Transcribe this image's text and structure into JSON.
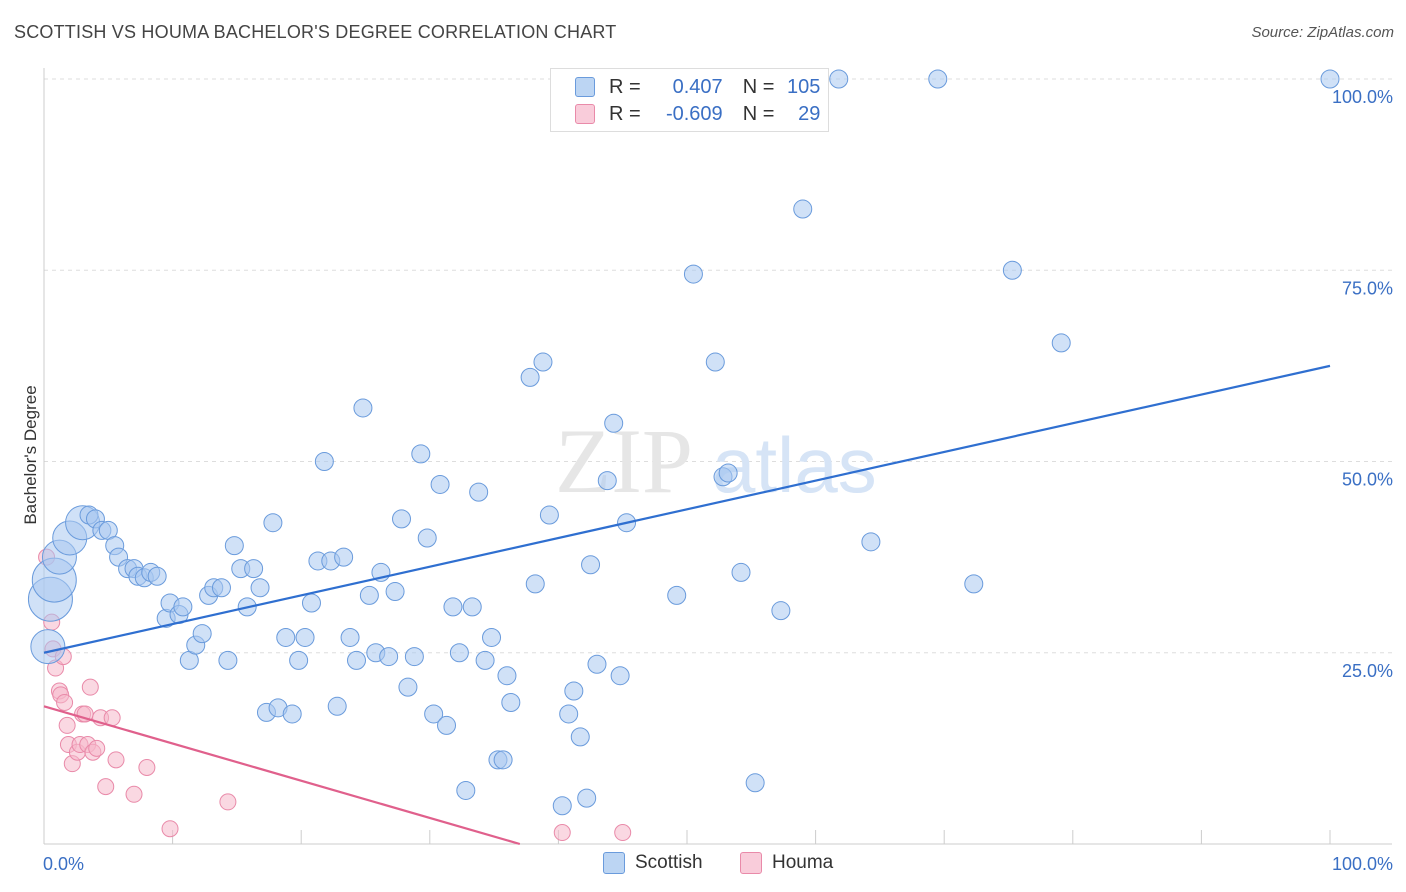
{
  "title": "SCOTTISH VS HOUMA BACHELOR'S DEGREE CORRELATION CHART",
  "source": "Source: ZipAtlas.com",
  "watermark": {
    "zip": "ZIP",
    "atlas": "atlas"
  },
  "legend_top": {
    "r_label": "R =",
    "n_label": "N =",
    "rows": [
      {
        "name": "Scottish",
        "r": "0.407",
        "n": "105"
      },
      {
        "name": "Houma",
        "r": "-0.609",
        "n": "29"
      }
    ]
  },
  "colors": {
    "scottish_fill": "#aac8f0",
    "scottish_stroke": "#6a9bdc",
    "scottish_line": "#2f6fd0",
    "houma_fill": "#f6b8cb",
    "houma_stroke": "#e98aa9",
    "houma_line": "#e0608c",
    "axis_text": "#3a6fc4",
    "grid": "#dddddd"
  },
  "chart_data": {
    "type": "scatter",
    "title": "SCOTTISH VS HOUMA BACHELOR'S DEGREE CORRELATION CHART",
    "xlabel": "",
    "ylabel": "Bachelor's Degree",
    "xlim": [
      0,
      100
    ],
    "ylim": [
      0,
      100
    ],
    "x_tick_labels": [
      "0.0%",
      "100.0%"
    ],
    "y_ticks": [
      25,
      50,
      75,
      100
    ],
    "y_tick_labels": [
      "25.0%",
      "50.0%",
      "75.0%",
      "100.0%"
    ],
    "series": [
      {
        "name": "Scottish",
        "r": 0.407,
        "n": 105,
        "trend": {
          "x": [
            0,
            100
          ],
          "y": [
            25.0,
            62.5
          ]
        },
        "points": [
          [
            0.5,
            32,
            3
          ],
          [
            0.8,
            34.5,
            3
          ],
          [
            1.2,
            37.5,
            2
          ],
          [
            2.0,
            40,
            2
          ],
          [
            3.0,
            42,
            2
          ],
          [
            0.3,
            25.8,
            2
          ],
          [
            3.5,
            43,
            1
          ],
          [
            4.0,
            42.5,
            1
          ],
          [
            4.5,
            41,
            1
          ],
          [
            5,
            41,
            1
          ],
          [
            5.5,
            39,
            1
          ],
          [
            5.8,
            37.5,
            1
          ],
          [
            6.5,
            36,
            1
          ],
          [
            7,
            36,
            1
          ],
          [
            7.3,
            35,
            1
          ],
          [
            7.8,
            34.8,
            1
          ],
          [
            8.3,
            35.5,
            1
          ],
          [
            8.8,
            35,
            1
          ],
          [
            9.5,
            29.5,
            1
          ],
          [
            9.8,
            31.5,
            1
          ],
          [
            10.5,
            30,
            1
          ],
          [
            10.8,
            31,
            1
          ],
          [
            11.3,
            24,
            1
          ],
          [
            11.8,
            26,
            1
          ],
          [
            12.3,
            27.5,
            1
          ],
          [
            12.8,
            32.5,
            1
          ],
          [
            13.2,
            33.5,
            1
          ],
          [
            13.8,
            33.5,
            1
          ],
          [
            14.3,
            24,
            1
          ],
          [
            14.8,
            39,
            1
          ],
          [
            15.3,
            36,
            1
          ],
          [
            15.8,
            31,
            1
          ],
          [
            16.3,
            36,
            1
          ],
          [
            16.8,
            33.5,
            1
          ],
          [
            17.3,
            17.2,
            1
          ],
          [
            17.8,
            42,
            1
          ],
          [
            18.2,
            17.8,
            1
          ],
          [
            18.8,
            27,
            1
          ],
          [
            19.3,
            17,
            1
          ],
          [
            19.8,
            24,
            1
          ],
          [
            20.3,
            27,
            1
          ],
          [
            20.8,
            31.5,
            1
          ],
          [
            21.3,
            37,
            1
          ],
          [
            21.8,
            50,
            1
          ],
          [
            22.3,
            37,
            1
          ],
          [
            22.8,
            18,
            1
          ],
          [
            23.3,
            37.5,
            1
          ],
          [
            23.8,
            27,
            1
          ],
          [
            24.3,
            24,
            1
          ],
          [
            24.8,
            57,
            1
          ],
          [
            25.3,
            32.5,
            1
          ],
          [
            25.8,
            25,
            1
          ],
          [
            26.2,
            35.5,
            1
          ],
          [
            26.8,
            24.5,
            1
          ],
          [
            27.3,
            33,
            1
          ],
          [
            27.8,
            42.5,
            1
          ],
          [
            28.3,
            20.5,
            1
          ],
          [
            28.8,
            24.5,
            1
          ],
          [
            29.3,
            51,
            1
          ],
          [
            29.8,
            40,
            1
          ],
          [
            30.3,
            17,
            1
          ],
          [
            30.8,
            47,
            1
          ],
          [
            31.3,
            15.5,
            1
          ],
          [
            31.8,
            31,
            1
          ],
          [
            32.3,
            25,
            1
          ],
          [
            32.8,
            7,
            1
          ],
          [
            33.3,
            31,
            1
          ],
          [
            33.8,
            46,
            1
          ],
          [
            34.3,
            24,
            1
          ],
          [
            34.8,
            27,
            1
          ],
          [
            35.3,
            11,
            1
          ],
          [
            35.7,
            11,
            1
          ],
          [
            36,
            22,
            1
          ],
          [
            36.3,
            18.5,
            1
          ],
          [
            37.8,
            61,
            1
          ],
          [
            38.2,
            34,
            1
          ],
          [
            38.8,
            63,
            1
          ],
          [
            39.3,
            43,
            1
          ],
          [
            40.3,
            5,
            1
          ],
          [
            40.8,
            17,
            1
          ],
          [
            41.2,
            20,
            1
          ],
          [
            41.7,
            14,
            1
          ],
          [
            42.2,
            6,
            1
          ],
          [
            42.5,
            36.5,
            1
          ],
          [
            43,
            23.5,
            1
          ],
          [
            43.8,
            47.5,
            1
          ],
          [
            44.3,
            55,
            1
          ],
          [
            44.8,
            22,
            1
          ],
          [
            45.3,
            42,
            1
          ],
          [
            49.2,
            32.5,
            1
          ],
          [
            50.5,
            74.5,
            1
          ],
          [
            52.2,
            63,
            1
          ],
          [
            52.8,
            48,
            1
          ],
          [
            53.2,
            48.5,
            1
          ],
          [
            54.2,
            35.5,
            1
          ],
          [
            55.3,
            8,
            1
          ],
          [
            57.3,
            30.5,
            1
          ],
          [
            59,
            83,
            1
          ],
          [
            61.8,
            100,
            1
          ],
          [
            64.3,
            39.5,
            1
          ],
          [
            69.5,
            100,
            1
          ],
          [
            72.3,
            34,
            1
          ],
          [
            75.3,
            75,
            1
          ],
          [
            79.1,
            65.5,
            1
          ],
          [
            100,
            100,
            1
          ]
        ]
      },
      {
        "name": "Houma",
        "r": -0.609,
        "n": 29,
        "trend": {
          "x": [
            0,
            37
          ],
          "y": [
            18.0,
            0
          ]
        },
        "points": [
          [
            0.2,
            37.5
          ],
          [
            0.6,
            29
          ],
          [
            0.7,
            25.5
          ],
          [
            0.9,
            23
          ],
          [
            1.2,
            20
          ],
          [
            1.3,
            19.5
          ],
          [
            1.5,
            24.5
          ],
          [
            1.6,
            18.5
          ],
          [
            1.8,
            15.5
          ],
          [
            1.9,
            13
          ],
          [
            2.2,
            10.5
          ],
          [
            2.6,
            12
          ],
          [
            2.8,
            13
          ],
          [
            3.0,
            17
          ],
          [
            3.2,
            17
          ],
          [
            3.4,
            13
          ],
          [
            3.6,
            20.5
          ],
          [
            3.8,
            12
          ],
          [
            4.1,
            12.5
          ],
          [
            4.4,
            16.5
          ],
          [
            4.8,
            7.5
          ],
          [
            5.3,
            16.5
          ],
          [
            5.6,
            11
          ],
          [
            7.0,
            6.5
          ],
          [
            8.0,
            10
          ],
          [
            9.8,
            2
          ],
          [
            14.3,
            5.5
          ],
          [
            40.3,
            1.5
          ],
          [
            45.0,
            1.5
          ]
        ]
      }
    ]
  }
}
